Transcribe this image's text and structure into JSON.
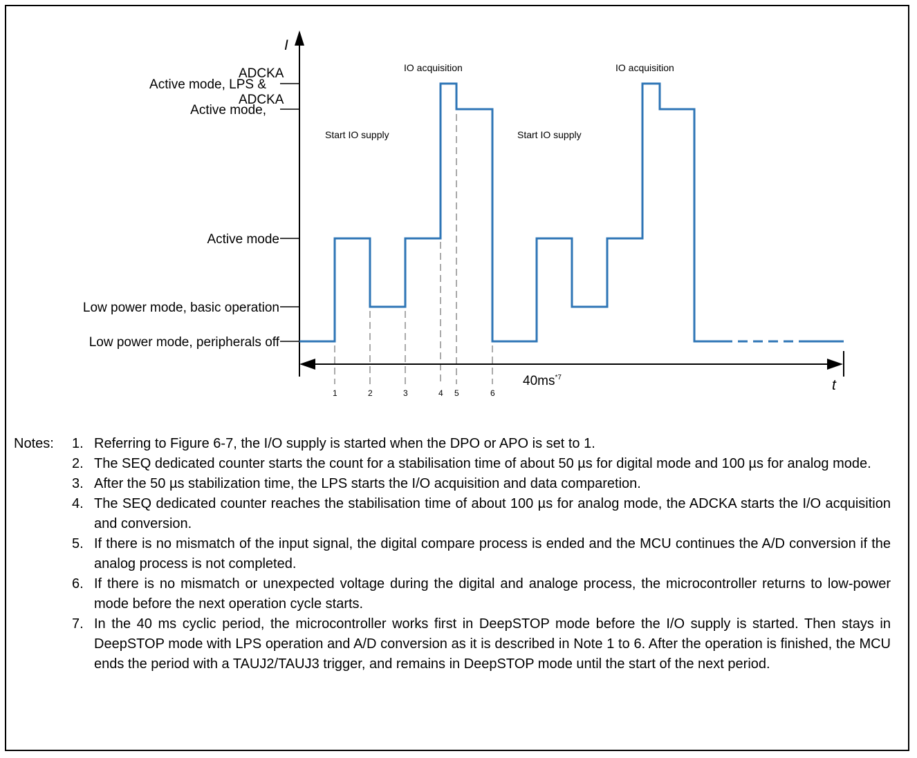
{
  "axes": {
    "y_name": "I",
    "x_name": "t"
  },
  "levels": [
    {
      "key": "lp_off",
      "label": "Low power mode, peripherals off"
    },
    {
      "key": "lp_basic",
      "label": "Low power mode, basic operation"
    },
    {
      "key": "active",
      "label": "Active mode"
    },
    {
      "key": "active_adc",
      "label_prefix": "Active mode, ",
      "label_overlay": "ADCKA"
    },
    {
      "key": "active_lps_adc",
      "label_prefix": "Active mode, LPS & ",
      "label_overlay": "ADCKA"
    }
  ],
  "annotations": {
    "start_io_supply": [
      "Start IO supply",
      "Start IO supply"
    ],
    "io_acquisition": [
      "IO acquisition",
      "IO acquisition"
    ]
  },
  "markers": [
    "1",
    "2",
    "3",
    "4",
    "5",
    "6"
  ],
  "period": {
    "label": "40ms",
    "superscript": "*7"
  },
  "notes_prefix": "Notes:",
  "notes": [
    {
      "num": "1.",
      "text": "Referring to Figure 6-7, the I/O supply is started when the DPO or APO is set to 1."
    },
    {
      "num": "2.",
      "text": "The SEQ dedicated counter starts the count for a stabilisation time of about 50 µs for digital mode and 100 µs for analog mode."
    },
    {
      "num": "3.",
      "text": "After the 50 µs stabilization time, the LPS starts the I/O acquisition and data comparetion."
    },
    {
      "num": "4.",
      "text": "The SEQ dedicated counter reaches the stabilisation time of about 100 µs for analog mode, the ADCKA starts the I/O acquisition and conversion."
    },
    {
      "num": "5.",
      "text": "If there is no mismatch of the input signal, the digital compare process is ended and the MCU continues the A/D conversion if the analog process is not completed."
    },
    {
      "num": "6.",
      "text": " If there is no mismatch or unexpected voltage during the digital and analoge process, the microcontroller returns to low-power mode before the next operation cycle starts."
    },
    {
      "num": "7.",
      "text": "In the 40 ms cyclic period, the microcontroller works first in DeepSTOP mode before the I/O supply is started. Then stays in DeepSTOP mode with LPS operation and A/D conversion as it is described in Note 1 to 6. After the operation is finished, the MCU ends the period with a TAUJ2/TAUJ3 trigger, and remains in DeepSTOP mode until the start of the next period."
    }
  ],
  "colors": {
    "waveform": "#2e75b6",
    "axis": "#000000",
    "guide": "#555555"
  }
}
